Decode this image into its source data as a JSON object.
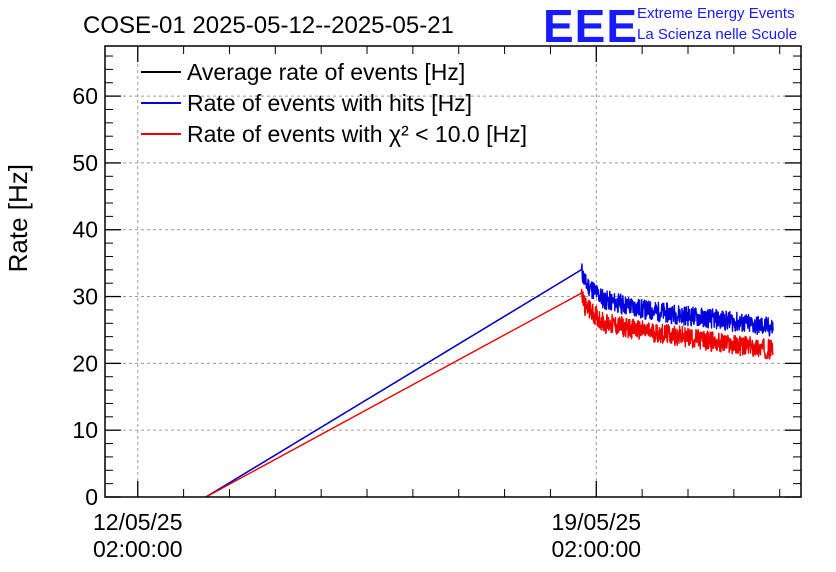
{
  "title": "COSE-01 2025-05-12--2025-05-21",
  "logo": {
    "mark": "EEE",
    "line1": "Extreme Energy Events",
    "line2": "La Scienza nelle Scuole"
  },
  "chart_data": {
    "type": "line",
    "ylabel": "Rate [Hz]",
    "xlabel": "",
    "ylim": [
      0,
      67.5
    ],
    "yticks": [
      0,
      10,
      20,
      30,
      40,
      50,
      60
    ],
    "xlim": [
      "2025-05-11T14:00:00",
      "2025-05-22T05:00:00"
    ],
    "xticks": [
      {
        "x": "2025-05-12T02:00:00",
        "line1": "12/05/25",
        "line2": "02:00:00"
      },
      {
        "x": "2025-05-19T02:00:00",
        "line1": "19/05/25",
        "line2": "02:00:00"
      }
    ],
    "grid": true,
    "legend_position": "top-left",
    "legend": [
      {
        "name": "Average rate of events [Hz]",
        "color": "#000000"
      },
      {
        "name": "Rate of events with hits [Hz]",
        "color": "#0000dd"
      },
      {
        "name": "Rate of events with χ² < 10.0 [Hz]",
        "color": "#ee0000"
      }
    ],
    "series": [
      {
        "name": "Average rate of events [Hz]",
        "color": "#000000",
        "points": [
          [
            "2025-05-13T03:00:00",
            0
          ],
          [
            "2025-05-18T20:30:00",
            34.0
          ]
        ]
      },
      {
        "name": "Rate of events with hits [Hz]",
        "color": "#0000dd",
        "points": [
          [
            "2025-05-13T03:00:00",
            0
          ],
          [
            "2025-05-18T20:30:00",
            34.0
          ],
          [
            "2025-05-18T22:00:00",
            32.0
          ],
          [
            "2025-05-19T05:00:00",
            29.5
          ],
          [
            "2025-05-19T20:00:00",
            28.0
          ],
          [
            "2025-05-20T10:00:00",
            27.2
          ],
          [
            "2025-05-21T00:00:00",
            26.5
          ],
          [
            "2025-05-21T16:00:00",
            25.5
          ],
          [
            "2025-05-21T18:45:00",
            25.3
          ]
        ],
        "noise_amplitude": 1.5
      },
      {
        "name": "Rate of events with χ² < 10.0 [Hz]",
        "color": "#ee0000",
        "points": [
          [
            "2025-05-13T03:00:00",
            0
          ],
          [
            "2025-05-18T20:30:00",
            30.5
          ],
          [
            "2025-05-18T22:00:00",
            28.5
          ],
          [
            "2025-05-19T05:00:00",
            26.0
          ],
          [
            "2025-05-19T20:00:00",
            24.8
          ],
          [
            "2025-05-20T10:00:00",
            24.0
          ],
          [
            "2025-05-21T00:00:00",
            23.0
          ],
          [
            "2025-05-21T16:00:00",
            22.2
          ],
          [
            "2025-05-21T18:45:00",
            22.0
          ]
        ],
        "noise_amplitude": 1.5
      }
    ]
  }
}
